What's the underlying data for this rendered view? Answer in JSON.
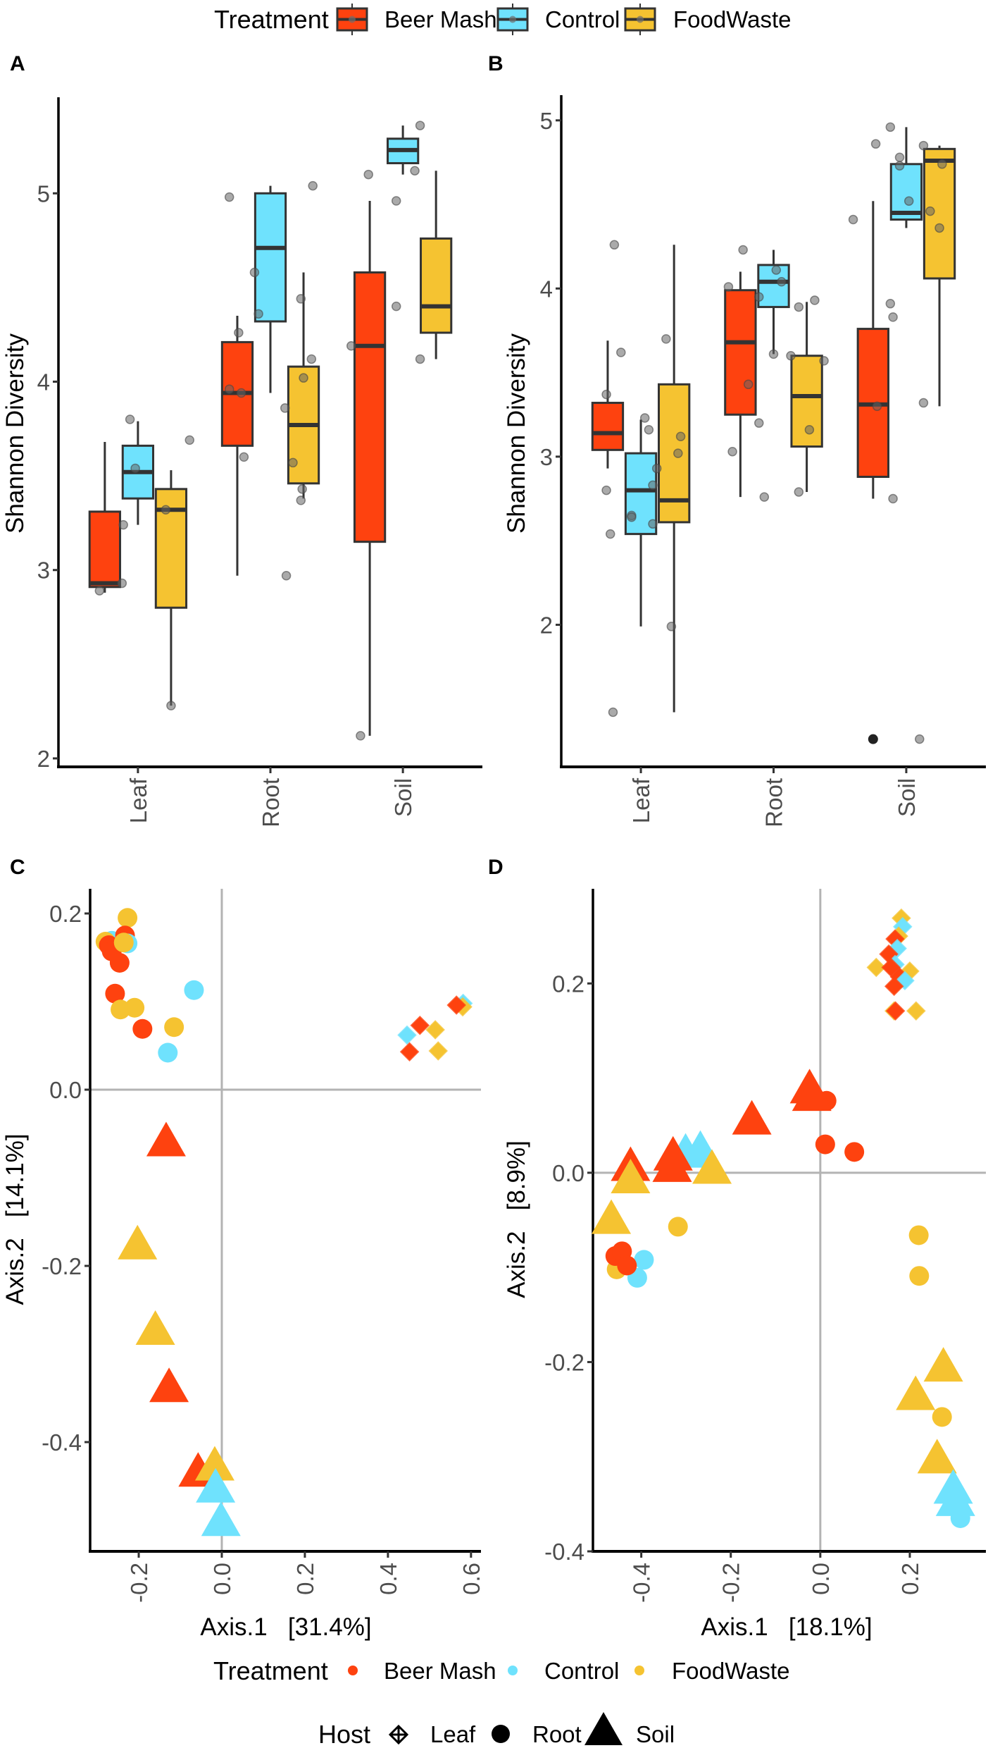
{
  "colors": {
    "Beer Mash": "#FE420F",
    "Control": "#6FE2FD",
    "FoodWaste": "#F5C331",
    "box_line": "#333333",
    "jitter": "#7f7f7f",
    "ref_line": "#b3b3b3"
  },
  "top_legend": {
    "title": "Treatment",
    "items": [
      "Beer Mash",
      "Control",
      "FoodWaste"
    ]
  },
  "bottom_legend": {
    "treatment_title": "Treatment",
    "treatment_items": [
      "Beer Mash",
      "Control",
      "FoodWaste"
    ],
    "host_title": "Host",
    "host_items": [
      "Leaf",
      "Root",
      "Soil"
    ]
  },
  "chart_data": [
    {
      "panel": "A",
      "type": "box",
      "ylabel": "Shannon Diversity",
      "xlabel": "",
      "categories": [
        "Leaf",
        "Root",
        "Soil"
      ],
      "treatments": [
        "Beer Mash",
        "Control",
        "FoodWaste"
      ],
      "ylim": [
        1.955,
        5.51
      ],
      "yticks": [
        2,
        3,
        4,
        5
      ],
      "ytick_labels": [
        "2",
        "3",
        "4",
        "5"
      ],
      "boxes_fields": [
        "category_index",
        "treatment_index",
        "lower",
        "q1",
        "median",
        "q3",
        "upper"
      ],
      "boxes": [
        [
          1,
          0,
          2.88,
          2.91,
          2.93,
          3.31,
          3.68
        ],
        [
          1,
          1,
          3.24,
          3.38,
          3.52,
          3.66,
          3.79
        ],
        [
          1,
          2,
          2.28,
          2.8,
          3.32,
          3.43,
          3.53
        ],
        [
          2,
          0,
          2.97,
          3.66,
          3.94,
          4.21,
          4.35
        ],
        [
          2,
          1,
          3.94,
          4.32,
          4.71,
          5.0,
          5.04
        ],
        [
          2,
          2,
          3.38,
          3.46,
          3.77,
          4.08,
          4.58
        ],
        [
          3,
          0,
          2.12,
          3.15,
          4.19,
          4.58,
          4.96
        ],
        [
          3,
          1,
          5.1,
          5.16,
          5.23,
          5.29,
          5.36
        ],
        [
          3,
          2,
          4.12,
          4.26,
          4.4,
          4.76,
          5.12
        ]
      ],
      "outliers": [],
      "points": [
        [
          0.89,
          3.24
        ],
        [
          0.94,
          3.8
        ],
        [
          0.98,
          3.54
        ],
        [
          1.21,
          3.32
        ],
        [
          1.39,
          3.69
        ],
        [
          0.71,
          2.89
        ],
        [
          0.88,
          2.93
        ],
        [
          1.25,
          2.28
        ],
        [
          1.69,
          4.98
        ],
        [
          1.76,
          4.26
        ],
        [
          1.69,
          3.96
        ],
        [
          1.78,
          3.94
        ],
        [
          1.8,
          3.6
        ],
        [
          1.88,
          4.58
        ],
        [
          1.91,
          4.36
        ],
        [
          2.11,
          3.86
        ],
        [
          2.17,
          3.57
        ],
        [
          2.23,
          4.44
        ],
        [
          2.25,
          4.02
        ],
        [
          2.31,
          4.12
        ],
        [
          2.32,
          5.04
        ],
        [
          2.24,
          3.43
        ],
        [
          2.23,
          3.37
        ],
        [
          2.12,
          2.97
        ],
        [
          2.61,
          4.19
        ],
        [
          2.74,
          5.1
        ],
        [
          2.95,
          4.96
        ],
        [
          2.95,
          4.4
        ],
        [
          3.09,
          5.12
        ],
        [
          3.13,
          5.36
        ],
        [
          3.13,
          4.12
        ],
        [
          2.68,
          2.12
        ]
      ]
    },
    {
      "panel": "B",
      "type": "box",
      "ylabel": "Shannon Diversity",
      "xlabel": "",
      "categories": [
        "Leaf",
        "Root",
        "Soil"
      ],
      "treatments": [
        "Beer Mash",
        "Control",
        "FoodWaste"
      ],
      "ylim": [
        1.155,
        5.15
      ],
      "yticks": [
        2,
        3,
        4,
        5
      ],
      "ytick_labels": [
        "2",
        "3",
        "4",
        "5"
      ],
      "boxes_fields": [
        "category_index",
        "treatment_index",
        "lower",
        "q1",
        "median",
        "q3",
        "upper"
      ],
      "boxes": [
        [
          1,
          0,
          2.93,
          3.04,
          3.14,
          3.32,
          3.69
        ],
        [
          1,
          1,
          1.99,
          2.54,
          2.8,
          3.02,
          3.22
        ],
        [
          1,
          2,
          1.48,
          2.61,
          2.74,
          3.43,
          4.26
        ],
        [
          2,
          0,
          2.76,
          3.25,
          3.68,
          3.99,
          4.1
        ],
        [
          2,
          1,
          3.61,
          3.89,
          4.04,
          4.14,
          4.23
        ],
        [
          2,
          2,
          2.79,
          3.06,
          3.36,
          3.6,
          3.92
        ],
        [
          3,
          0,
          2.75,
          2.88,
          3.31,
          3.76,
          4.52
        ],
        [
          3,
          1,
          4.36,
          4.41,
          4.45,
          4.74,
          4.96
        ],
        [
          3,
          2,
          3.3,
          4.06,
          4.76,
          4.83,
          4.85
        ]
      ],
      "outliers": [
        [
          3,
          0,
          1.32
        ]
      ],
      "points": [
        [
          0.8,
          4.26
        ],
        [
          0.85,
          3.62
        ],
        [
          0.74,
          3.37
        ],
        [
          0.74,
          2.8
        ],
        [
          1.03,
          3.23
        ],
        [
          1.06,
          3.16
        ],
        [
          1.12,
          2.93
        ],
        [
          1.09,
          2.83
        ],
        [
          0.93,
          2.65
        ],
        [
          1.19,
          3.7
        ],
        [
          1.3,
          3.12
        ],
        [
          1.28,
          3.02
        ],
        [
          0.77,
          2.54
        ],
        [
          0.93,
          2.64
        ],
        [
          1.09,
          2.6
        ],
        [
          0.79,
          1.48
        ],
        [
          1.23,
          1.99
        ],
        [
          1.77,
          4.23
        ],
        [
          1.66,
          4.01
        ],
        [
          1.81,
          3.43
        ],
        [
          1.69,
          3.03
        ],
        [
          1.89,
          3.95
        ],
        [
          1.89,
          3.2
        ],
        [
          1.93,
          2.76
        ],
        [
          2.02,
          4.11
        ],
        [
          2.06,
          4.04
        ],
        [
          2.0,
          3.61
        ],
        [
          2.19,
          3.89
        ],
        [
          2.31,
          3.93
        ],
        [
          2.13,
          3.6
        ],
        [
          2.38,
          3.57
        ],
        [
          2.27,
          3.16
        ],
        [
          2.19,
          2.79
        ],
        [
          2.6,
          4.41
        ],
        [
          2.88,
          4.96
        ],
        [
          2.77,
          4.86
        ],
        [
          2.95,
          4.78
        ],
        [
          2.95,
          4.73
        ],
        [
          3.02,
          4.52
        ],
        [
          2.88,
          3.91
        ],
        [
          2.9,
          3.83
        ],
        [
          2.78,
          3.3
        ],
        [
          2.9,
          2.75
        ],
        [
          3.13,
          4.85
        ],
        [
          3.27,
          4.74
        ],
        [
          3.18,
          4.46
        ],
        [
          3.25,
          4.36
        ],
        [
          3.13,
          3.32
        ],
        [
          3.1,
          1.32
        ]
      ]
    },
    {
      "panel": "C",
      "type": "scatter",
      "xlabel": "Axis.1   [31.4%]",
      "ylabel": "Axis.2   [14.1%]",
      "xlim": [
        -0.317,
        0.624
      ],
      "ylim": [
        -0.524,
        0.228
      ],
      "xticks": [
        -0.2,
        0.0,
        0.2,
        0.4,
        0.6
      ],
      "xtick_labels": [
        "-0.2",
        "0.0",
        "0.2",
        "0.4",
        "0.6"
      ],
      "yticks": [
        -0.4,
        -0.2,
        0.0,
        0.2
      ],
      "ytick_labels": [
        "-0.4",
        "-0.2",
        "0.0",
        "0.2"
      ],
      "reference_lines": {
        "x": 0,
        "y": 0
      },
      "treatments": [
        "Beer Mash",
        "Control",
        "FoodWaste"
      ],
      "hosts": [
        "Leaf",
        "Root",
        "Soil"
      ],
      "points_fields": [
        "x",
        "y",
        "treatment_index",
        "host_index"
      ],
      "points": [
        [
          -0.227,
          0.195,
          2,
          1
        ],
        [
          -0.265,
          0.169,
          1,
          1
        ],
        [
          -0.28,
          0.168,
          2,
          1
        ],
        [
          -0.233,
          0.175,
          0,
          1
        ],
        [
          -0.272,
          0.164,
          0,
          1
        ],
        [
          -0.265,
          0.157,
          0,
          1
        ],
        [
          -0.227,
          0.166,
          1,
          1
        ],
        [
          -0.236,
          0.167,
          2,
          1
        ],
        [
          -0.246,
          0.144,
          0,
          1
        ],
        [
          -0.257,
          0.109,
          0,
          1
        ],
        [
          -0.244,
          0.091,
          2,
          1
        ],
        [
          -0.21,
          0.093,
          2,
          1
        ],
        [
          -0.191,
          0.069,
          0,
          1
        ],
        [
          -0.115,
          0.071,
          2,
          1
        ],
        [
          -0.067,
          0.113,
          1,
          1
        ],
        [
          -0.13,
          0.042,
          1,
          1
        ],
        [
          0.446,
          0.062,
          1,
          0
        ],
        [
          0.477,
          0.073,
          0,
          0
        ],
        [
          0.514,
          0.068,
          2,
          0
        ],
        [
          0.452,
          0.043,
          0,
          0
        ],
        [
          0.521,
          0.044,
          2,
          0
        ],
        [
          0.581,
          0.098,
          1,
          0
        ],
        [
          0.58,
          0.094,
          2,
          0
        ],
        [
          0.565,
          0.096,
          0,
          0
        ],
        [
          -0.134,
          -0.062,
          0,
          2
        ],
        [
          -0.203,
          -0.179,
          2,
          2
        ],
        [
          -0.16,
          -0.276,
          2,
          2
        ],
        [
          -0.127,
          -0.341,
          0,
          2
        ],
        [
          -0.057,
          -0.437,
          0,
          2
        ],
        [
          -0.017,
          -0.43,
          2,
          2
        ],
        [
          -0.015,
          -0.455,
          1,
          2
        ],
        [
          -0.002,
          -0.493,
          1,
          2
        ]
      ]
    },
    {
      "panel": "D",
      "type": "scatter",
      "xlabel": "Axis.1   [18.1%]",
      "ylabel": "Axis.2   [8.9%]",
      "xlim": [
        -0.508,
        0.37
      ],
      "ylim": [
        -0.4,
        0.3
      ],
      "xticks": [
        -0.4,
        -0.2,
        0.0,
        0.2
      ],
      "xtick_labels": [
        "-0.4",
        "-0.2",
        "0.0",
        "0.2"
      ],
      "yticks": [
        -0.4,
        -0.2,
        0.0,
        0.2
      ],
      "ytick_labels": [
        "-0.4",
        "-0.2",
        "0.0",
        "0.2"
      ],
      "reference_lines": {
        "x": 0,
        "y": 0
      },
      "treatments": [
        "Beer Mash",
        "Control",
        "FoodWaste"
      ],
      "hosts": [
        "Leaf",
        "Root",
        "Soil"
      ],
      "points_fields": [
        "x",
        "y",
        "treatment_index",
        "host_index"
      ],
      "points": [
        [
          0.014,
          0.076,
          0,
          1
        ],
        [
          0.011,
          0.03,
          0,
          1
        ],
        [
          0.076,
          0.022,
          0,
          1
        ],
        [
          -0.318,
          -0.057,
          2,
          1
        ],
        [
          0.22,
          -0.066,
          2,
          1
        ],
        [
          0.221,
          -0.109,
          2,
          1
        ],
        [
          0.272,
          -0.258,
          2,
          1
        ],
        [
          -0.455,
          -0.102,
          2,
          1
        ],
        [
          -0.409,
          -0.111,
          1,
          1
        ],
        [
          -0.394,
          -0.092,
          1,
          1
        ],
        [
          -0.458,
          -0.088,
          0,
          1
        ],
        [
          -0.443,
          -0.083,
          0,
          1
        ],
        [
          -0.432,
          -0.098,
          0,
          1
        ],
        [
          0.313,
          -0.365,
          1,
          1
        ],
        [
          0.181,
          0.269,
          2,
          0
        ],
        [
          0.184,
          0.26,
          1,
          0
        ],
        [
          0.175,
          0.25,
          2,
          0
        ],
        [
          0.167,
          0.247,
          0,
          0
        ],
        [
          0.172,
          0.237,
          1,
          0
        ],
        [
          0.153,
          0.231,
          0,
          0
        ],
        [
          0.125,
          0.217,
          2,
          0
        ],
        [
          0.167,
          0.22,
          1,
          0
        ],
        [
          0.158,
          0.217,
          0,
          0
        ],
        [
          0.2,
          0.213,
          2,
          0
        ],
        [
          0.177,
          0.207,
          0,
          0
        ],
        [
          0.189,
          0.203,
          1,
          0
        ],
        [
          0.165,
          0.197,
          0,
          0
        ],
        [
          0.214,
          0.171,
          2,
          0
        ],
        [
          0.165,
          0.171,
          2,
          0
        ],
        [
          0.168,
          0.171,
          0,
          0
        ],
        [
          -0.024,
          0.086,
          0,
          2
        ],
        [
          -0.019,
          0.078,
          0,
          2
        ],
        [
          -0.153,
          0.053,
          0,
          2
        ],
        [
          -0.301,
          0.018,
          1,
          2
        ],
        [
          -0.268,
          0.021,
          1,
          2
        ],
        [
          -0.242,
          0.001,
          2,
          2
        ],
        [
          -0.329,
          0.015,
          0,
          2
        ],
        [
          -0.331,
          0.003,
          0,
          2
        ],
        [
          -0.424,
          0.004,
          0,
          2
        ],
        [
          -0.424,
          -0.009,
          2,
          2
        ],
        [
          -0.467,
          -0.052,
          2,
          2
        ],
        [
          0.275,
          -0.208,
          2,
          2
        ],
        [
          0.213,
          -0.238,
          2,
          2
        ],
        [
          0.261,
          -0.305,
          2,
          2
        ],
        [
          0.297,
          -0.337,
          1,
          2
        ],
        [
          0.302,
          -0.35,
          1,
          2
        ]
      ]
    }
  ]
}
